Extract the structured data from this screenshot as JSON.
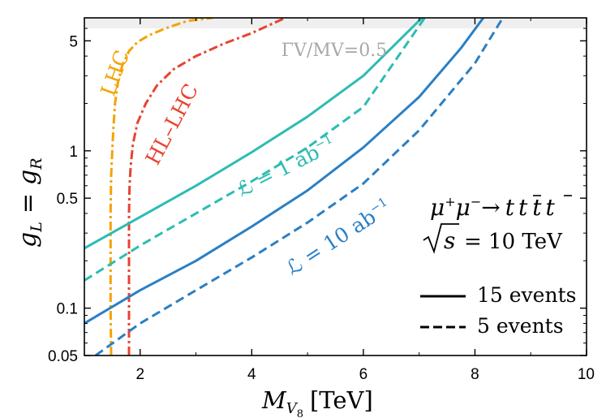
{
  "chart_data": {
    "type": "line",
    "xlabel": "M",
    "xlabel_sub": "V",
    "xlabel_subsub": "8",
    "xlabel_unit": "[TeV]",
    "ylabel_main": "g",
    "ylabel_sub_left": "L",
    "ylabel_eq": "=",
    "ylabel_right": "g",
    "ylabel_sub_right": "R",
    "x_scale": "linear",
    "y_scale": "log",
    "xlim": [
      1,
      10
    ],
    "ylim": [
      0.05,
      7
    ],
    "x_ticks": [
      {
        "value": 2,
        "label": "2"
      },
      {
        "value": 4,
        "label": "4"
      },
      {
        "value": 6,
        "label": "6"
      },
      {
        "value": 8,
        "label": "8"
      },
      {
        "value": 10,
        "label": "10"
      }
    ],
    "y_ticks": [
      {
        "value": 0.05,
        "label": "0.05"
      },
      {
        "value": 0.1,
        "label": "0.1"
      },
      {
        "value": 0.5,
        "label": "0.5"
      },
      {
        "value": 1,
        "label": "1"
      },
      {
        "value": 5,
        "label": "5"
      }
    ],
    "grid": false,
    "shaded_band": {
      "y_from": 6.0,
      "y_to": 7,
      "label": "ΓV/MV=0.5",
      "color": "#efefef",
      "label_color": "#a8a8a8"
    },
    "series": [
      {
        "name": "LHC",
        "color": "#f5a200",
        "style": "dashdot",
        "x": [
          1.48,
          1.47,
          1.47,
          1.47,
          1.48,
          1.5,
          1.52,
          1.55,
          1.6,
          1.68,
          1.8,
          1.95,
          2.15,
          2.45,
          2.85,
          3.3
        ],
        "y": [
          0.05,
          0.1,
          0.2,
          0.4,
          0.7,
          1.0,
          1.4,
          2.0,
          2.7,
          3.5,
          4.3,
          4.9,
          5.4,
          6.0,
          6.7,
          7.0
        ]
      },
      {
        "name": "HL-LHC",
        "color": "#e8432f",
        "style": "dashdot",
        "x": [
          1.8,
          1.8,
          1.8,
          1.8,
          1.81,
          1.83,
          1.87,
          1.95,
          2.1,
          2.3,
          2.6,
          3.0,
          3.5,
          4.0,
          4.6
        ],
        "y": [
          0.05,
          0.1,
          0.2,
          0.4,
          0.6,
          0.8,
          1.1,
          1.5,
          2.0,
          2.6,
          3.3,
          4.0,
          4.8,
          5.6,
          7.0
        ]
      },
      {
        "name": "15 events",
        "luminosity": "1 ab⁻¹",
        "color": "#2cbcb4",
        "style": "solid",
        "x": [
          1,
          2,
          3,
          4,
          5,
          6,
          7.05
        ],
        "y": [
          0.24,
          0.38,
          0.6,
          0.98,
          1.65,
          3.0,
          7.0
        ]
      },
      {
        "name": "5 events",
        "luminosity": "1 ab⁻¹",
        "color": "#2cbcb4",
        "style": "dashed",
        "x": [
          1,
          2,
          3,
          4,
          5,
          6,
          7.1
        ],
        "y": [
          0.15,
          0.25,
          0.4,
          0.64,
          1.05,
          1.9,
          7.0
        ]
      },
      {
        "name": "15 events",
        "luminosity": "10 ab⁻¹",
        "color": "#2a7fc4",
        "style": "solid",
        "x": [
          1,
          2,
          3,
          4,
          5,
          6,
          7,
          7.75,
          8.15
        ],
        "y": [
          0.08,
          0.13,
          0.2,
          0.33,
          0.56,
          1.05,
          2.2,
          4.5,
          7.0
        ]
      },
      {
        "name": "5 events",
        "luminosity": "10 ab⁻¹",
        "color": "#2a7fc4",
        "style": "dashed",
        "x": [
          1.2,
          2,
          3,
          4,
          5,
          6,
          7,
          8,
          8.5
        ],
        "y": [
          0.05,
          0.08,
          0.13,
          0.21,
          0.35,
          0.62,
          1.35,
          3.6,
          7.0
        ]
      }
    ],
    "annotations": [
      {
        "id": "lhc",
        "text": "LHC",
        "color": "#f5a200"
      },
      {
        "id": "hllhc",
        "text": "HL–LHC",
        "color": "#e8432f"
      },
      {
        "id": "lumi1",
        "text_pre": "ℒ = 1 ab",
        "text_sup": "−1",
        "color": "#2cbcb4"
      },
      {
        "id": "lumi10",
        "text_pre": "ℒ = 10 ab",
        "text_sup": "−1",
        "color": "#2a7fc4"
      }
    ],
    "process": {
      "mu": "μ",
      "plus": "+",
      "minus": "−",
      "arrow": "→",
      "t": "t"
    },
    "energy": {
      "lhs": "s",
      "rhs": "= 10 TeV"
    },
    "legend": {
      "position": "bottom-right",
      "items": [
        {
          "label": "15 events",
          "style": "solid"
        },
        {
          "label": "5 events",
          "style": "dashed"
        }
      ]
    }
  }
}
